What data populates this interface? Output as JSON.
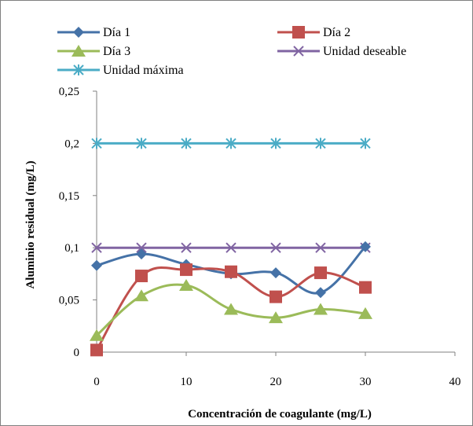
{
  "chart_data": {
    "type": "line",
    "xlabel": "Concentración de coagulante (mg/L)",
    "ylabel": "Aluminio residual (mg/L)",
    "xlim": [
      0,
      40
    ],
    "ylim": [
      0,
      0.25
    ],
    "x_ticks": [
      0,
      10,
      20,
      30,
      40
    ],
    "y_ticks": [
      0,
      0.05,
      0.1,
      0.15,
      0.2,
      0.25
    ],
    "x_tick_labels": [
      "0",
      "10",
      "20",
      "30",
      "40"
    ],
    "y_tick_labels": [
      "0",
      "0,05",
      "0,1",
      "0,15",
      "0,2",
      "0,25"
    ],
    "grid": false,
    "legend_position": "top",
    "x": [
      0,
      5,
      10,
      15,
      20,
      25,
      30
    ],
    "series": [
      {
        "name": "Día 1",
        "color": "#4572A7",
        "marker": "diamond",
        "values": [
          0.083,
          0.094,
          0.084,
          0.075,
          0.076,
          0.057,
          0.101
        ]
      },
      {
        "name": "Día 2",
        "color": "#C0504D",
        "marker": "square",
        "values": [
          0.002,
          0.073,
          0.079,
          0.077,
          0.053,
          0.076,
          0.062
        ]
      },
      {
        "name": "Día 3",
        "color": "#9BBB59",
        "marker": "triangle",
        "values": [
          0.016,
          0.054,
          0.064,
          0.041,
          0.033,
          0.041,
          0.037
        ]
      },
      {
        "name": "Unidad deseable",
        "color": "#8064A2",
        "marker": "x",
        "values": [
          0.1,
          0.1,
          0.1,
          0.1,
          0.1,
          0.1,
          0.1
        ]
      },
      {
        "name": "Unidad máxima",
        "color": "#4BACC6",
        "marker": "star",
        "values": [
          0.2,
          0.2,
          0.2,
          0.2,
          0.2,
          0.2,
          0.2
        ]
      }
    ]
  }
}
